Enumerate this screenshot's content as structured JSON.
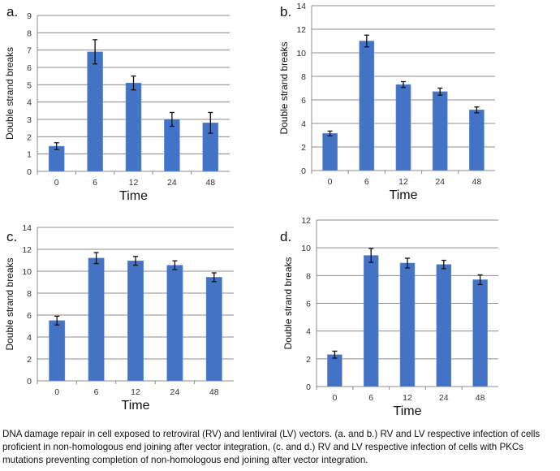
{
  "chart_data": [
    {
      "panel": "a.",
      "type": "bar",
      "categories": [
        "0",
        "6",
        "12",
        "24",
        "48"
      ],
      "values": [
        1.45,
        6.9,
        5.1,
        3.0,
        2.8
      ],
      "errors": [
        0.2,
        0.7,
        0.4,
        0.4,
        0.6
      ],
      "xlabel": "Time",
      "ylabel": "Double strand breaks",
      "ylim": [
        0,
        9
      ],
      "yticks": [
        0,
        1,
        2,
        3,
        4,
        5,
        6,
        7,
        8,
        9
      ],
      "grid": true,
      "color": "#4472C4"
    },
    {
      "panel": "b.",
      "type": "bar",
      "categories": [
        "0",
        "6",
        "12",
        "24",
        "48"
      ],
      "values": [
        3.15,
        11.0,
        7.3,
        6.7,
        5.15
      ],
      "errors": [
        0.2,
        0.5,
        0.25,
        0.3,
        0.25
      ],
      "xlabel": "Time",
      "ylabel": "Double strand breaks",
      "ylim": [
        0,
        14
      ],
      "yticks": [
        0,
        2,
        4,
        6,
        8,
        10,
        12,
        14
      ],
      "grid": true,
      "color": "#4472C4"
    },
    {
      "panel": "c.",
      "type": "bar",
      "categories": [
        "0",
        "6",
        "12",
        "24",
        "48"
      ],
      "values": [
        5.5,
        11.2,
        10.95,
        10.55,
        9.45
      ],
      "errors": [
        0.4,
        0.5,
        0.4,
        0.4,
        0.4
      ],
      "xlabel": "Time",
      "ylabel": "Double strand breaks",
      "ylim": [
        0,
        14
      ],
      "yticks": [
        0,
        2,
        4,
        6,
        8,
        10,
        12,
        14
      ],
      "grid": true,
      "color": "#4472C4"
    },
    {
      "panel": "d.",
      "type": "bar",
      "categories": [
        "0",
        "6",
        "12",
        "24",
        "48"
      ],
      "values": [
        2.3,
        9.45,
        8.9,
        8.8,
        7.7
      ],
      "errors": [
        0.25,
        0.5,
        0.35,
        0.3,
        0.35
      ],
      "xlabel": "Time",
      "ylabel": "Double strand breaks",
      "ylim": [
        0,
        12
      ],
      "yticks": [
        0,
        2,
        4,
        6,
        8,
        10,
        12
      ],
      "grid": true,
      "color": "#4472C4"
    }
  ],
  "caption": "DNA damage repair in cell exposed to retroviral (RV) and lentiviral (LV) vectors. (a. and b.) RV and LV respective infection of cells proficient in non-homologous end joining after vector integration, (c. and d.) RV and LV respective infection of cells with PKCs mutations preventing completion of non-homologous end joining after vector integration."
}
